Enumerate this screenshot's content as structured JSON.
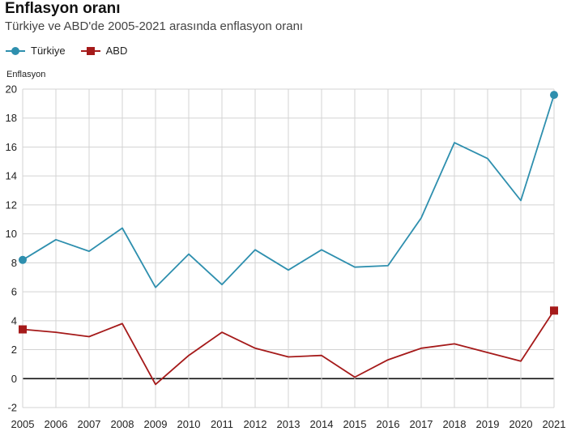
{
  "header": {
    "title": "Enflasyon oranı",
    "subtitle": "Türkiye ve ABD'de 2005-2021 arasında enflasyon oranı"
  },
  "colors": {
    "turkey": "#2e8fae",
    "usa": "#a51a1a",
    "grid": "#d3d3d3",
    "zero": "#111111",
    "axis_text": "#222222"
  },
  "chart_data": {
    "type": "line",
    "title": "Enflasyon oranı",
    "subtitle": "Türkiye ve ABD'de 2005-2021 arasında enflasyon oranı",
    "ylabel": "Enflasyon",
    "xlabel": "",
    "ylim": [
      -2,
      20
    ],
    "yticks": [
      -2,
      0,
      2,
      4,
      6,
      8,
      10,
      12,
      14,
      16,
      18,
      20
    ],
    "grid": true,
    "legend_position": "top-left",
    "x": [
      "2005",
      "2006",
      "2007",
      "2008",
      "2009",
      "2010",
      "2011",
      "2012",
      "2013",
      "2014",
      "2015",
      "2016",
      "2017",
      "2018",
      "2019",
      "2020",
      "2021"
    ],
    "series": [
      {
        "name": "Türkiye",
        "marker": "circle",
        "values": [
          8.2,
          9.6,
          8.8,
          10.4,
          6.3,
          8.6,
          6.5,
          8.9,
          7.5,
          8.9,
          7.7,
          7.8,
          11.1,
          16.3,
          15.2,
          12.3,
          19.6
        ]
      },
      {
        "name": "ABD",
        "marker": "square",
        "values": [
          3.4,
          3.2,
          2.9,
          3.8,
          -0.4,
          1.6,
          3.2,
          2.1,
          1.5,
          1.6,
          0.1,
          1.3,
          2.1,
          2.4,
          1.8,
          1.2,
          4.7
        ]
      }
    ]
  }
}
